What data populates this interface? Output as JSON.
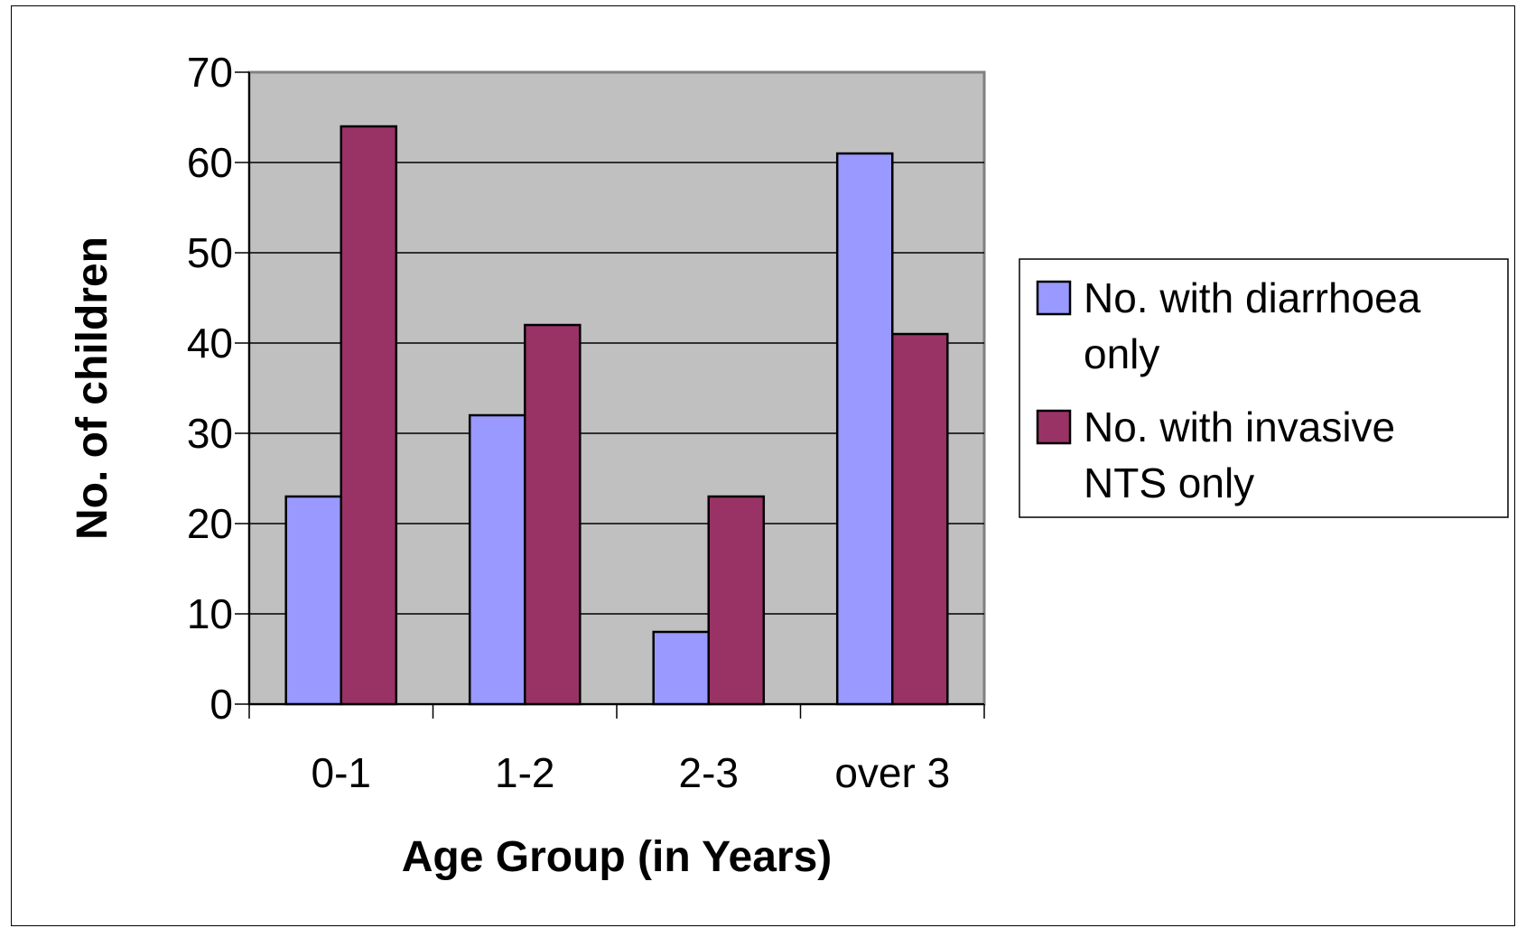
{
  "chart_data": {
    "type": "bar",
    "title": "",
    "xlabel": "Age Group (in Years)",
    "ylabel": "No. of children",
    "categories": [
      "0-1",
      "1-2",
      "2-3",
      "over 3"
    ],
    "series": [
      {
        "name": "No. with diarrhoea only",
        "legend_lines": [
          "No. with diarrhoea",
          "only"
        ],
        "color": "#9999ff",
        "values": [
          23,
          32,
          8,
          61
        ]
      },
      {
        "name": "No. with invasive NTS only",
        "legend_lines": [
          "No. with invasive",
          "NTS only"
        ],
        "color": "#993366",
        "values": [
          64,
          42,
          23,
          41
        ]
      }
    ],
    "ylim": [
      0,
      70
    ],
    "yticks": [
      0,
      10,
      20,
      30,
      40,
      50,
      60,
      70
    ],
    "grid": true,
    "plot_background": "#c0c0c0",
    "legend_position": "right"
  }
}
